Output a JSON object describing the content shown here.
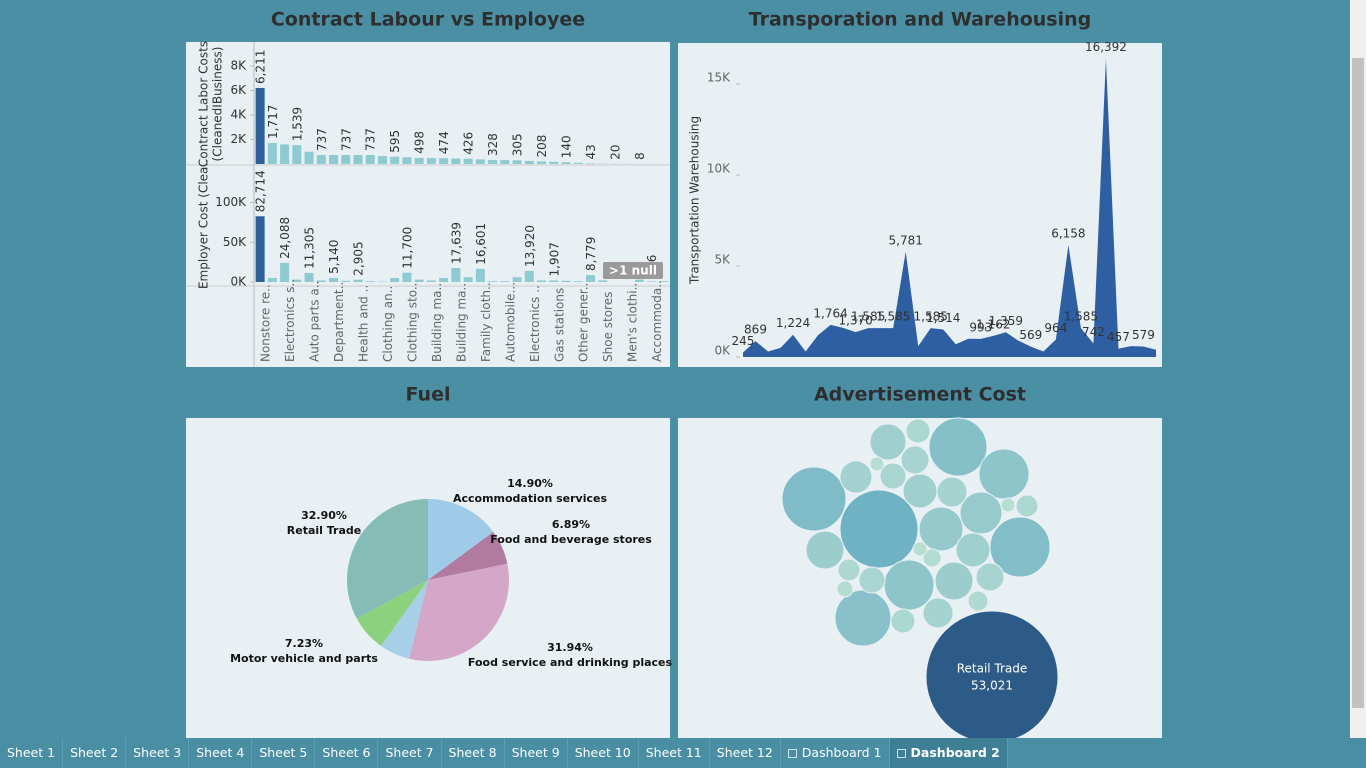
{
  "chart_data": [
    {
      "type": "bar",
      "title": "Contract Labour vs Employee",
      "categories": [
        "Nonstore re..",
        null,
        "Electronics s..",
        null,
        "Auto parts a..",
        null,
        "Department..",
        null,
        "Health and ..",
        null,
        "Clothing an..",
        null,
        "Clothing sto..",
        null,
        "Building ma..",
        null,
        "Building ma..",
        null,
        "Family cloth..",
        null,
        "Automobile...",
        null,
        "Electronics ..",
        null,
        "Gas stations",
        null,
        "Other gener..",
        null,
        "Shoe stores",
        null,
        "Men's clothi..",
        null,
        "Accommoda..",
        null
      ],
      "color": "#8ecad1",
      "max_color": "#2f5f98",
      "panes": [
        {
          "y_label": [
            "Contract Labor Costs",
            "(CleanedIBusiness)"
          ],
          "ylim": [
            0,
            9800
          ],
          "yticks": [
            {
              "value": 2000,
              "label": "2K"
            },
            {
              "value": 4000,
              "label": "4K"
            },
            {
              "value": 6000,
              "label": "6K"
            },
            {
              "value": 8000,
              "label": "8K"
            }
          ],
          "values": [
            6211,
            1717,
            1600,
            1539,
            1000,
            737,
            737,
            737,
            737,
            737,
            650,
            595,
            550,
            498,
            480,
            474,
            450,
            426,
            380,
            328,
            320,
            305,
            250,
            208,
            180,
            140,
            100,
            43,
            30,
            20,
            15,
            8,
            5,
            3
          ],
          "value_labels": [
            "6,211",
            "1,717",
            null,
            "1,539",
            null,
            "737",
            null,
            "737",
            null,
            "737",
            null,
            "595",
            null,
            "498",
            null,
            "474",
            null,
            "426",
            null,
            "328",
            null,
            "305",
            null,
            "208",
            null,
            "140",
            null,
            "43",
            null,
            "20",
            null,
            "8",
            null,
            null
          ]
        },
        {
          "y_label": [
            "Employer Cost (Clea.."
          ],
          "ylim": [
            0,
            146000
          ],
          "yticks": [
            {
              "value": 0,
              "label": "0K"
            },
            {
              "value": 50000,
              "label": "50K"
            },
            {
              "value": 100000,
              "label": "100K"
            }
          ],
          "values": [
            82714,
            5000,
            24088,
            3000,
            11305,
            2000,
            5140,
            1500,
            2905,
            1000,
            500,
            5000,
            11700,
            3000,
            2000,
            5000,
            17639,
            6000,
            16601,
            1000,
            1000,
            6000,
            13920,
            2000,
            1907,
            1500,
            1000,
            8779,
            2000,
            null,
            null,
            3000,
            686,
            1000
          ],
          "value_labels": [
            "82,714",
            null,
            "24,088",
            null,
            "11,305",
            null,
            "5,140",
            null,
            "2,905",
            null,
            null,
            null,
            "11,700",
            null,
            null,
            null,
            "17,639",
            null,
            "16,601",
            null,
            null,
            null,
            "13,920",
            null,
            "1,907",
            null,
            null,
            "8,779",
            null,
            null,
            null,
            null,
            "686",
            null
          ],
          "null_note": ">1 null"
        }
      ]
    },
    {
      "type": "area",
      "title": "Transporation and Warehousing",
      "y_label": "Transportation Warehousing",
      "categories": [
        null,
        null,
        null,
        null,
        null,
        null,
        null,
        null,
        null,
        null,
        null,
        null,
        null,
        null,
        null,
        null,
        null,
        null,
        null,
        null,
        null,
        null,
        null,
        null,
        null,
        null,
        null,
        null,
        null,
        null,
        null,
        null,
        null,
        null
      ],
      "values": [
        245,
        869,
        300,
        500,
        1224,
        300,
        1200,
        1764,
        1600,
        1370,
        1585,
        1585,
        1585,
        5781,
        600,
        1585,
        1514,
        700,
        1000,
        993,
        1162,
        1359,
        900,
        569,
        300,
        964,
        6158,
        1585,
        742,
        16392,
        457,
        600,
        579,
        400
      ],
      "value_labels": [
        "245",
        "869",
        null,
        null,
        "1,224",
        null,
        null,
        "1,764",
        null,
        "1,370",
        "1,585",
        null,
        "1,585",
        "5,781",
        null,
        "1,585",
        "1,514",
        null,
        null,
        "993",
        "1,162",
        "1,359",
        null,
        "569",
        null,
        "964",
        "6,158",
        "1,585",
        "742",
        "16,392",
        "457",
        null,
        "579",
        null
      ],
      "color": "#2e5fa3",
      "ylim": [
        0,
        17200
      ],
      "yticks": [
        {
          "value": 0,
          "label": "0K"
        },
        {
          "value": 5000,
          "label": "5K"
        },
        {
          "value": 10000,
          "label": "10K"
        },
        {
          "value": 15000,
          "label": "15K"
        }
      ]
    },
    {
      "type": "pie",
      "title": "Fuel",
      "categories": [
        "Accommodation services",
        "Food and beverage stores",
        "Food service and drinking places",
        null,
        "Motor vehicle and parts",
        "Retail Trade"
      ],
      "values": [
        14.9,
        6.89,
        31.94,
        6.14,
        7.23,
        32.9
      ],
      "value_labels": [
        "14.90%",
        "6.89%",
        "31.94%",
        null,
        "7.23%",
        "32.90%"
      ],
      "colors": [
        "#a0cbe8",
        "#b07aa1",
        "#d4a6c8",
        "#a8cfe8",
        "#8cd17d",
        "#86bcb6"
      ]
    },
    {
      "type": "bubble",
      "title": "Advertisement Cost",
      "categories": [
        "Retail Trade",
        null,
        null,
        null,
        null,
        null,
        null,
        null,
        null,
        null,
        null,
        null,
        null,
        null,
        null,
        null,
        null,
        null,
        null,
        null,
        null,
        null,
        null,
        null,
        null,
        null,
        null,
        null,
        null,
        null,
        null,
        null
      ],
      "values": [
        53021,
        18514,
        12464,
        10236,
        10958,
        9546,
        7610,
        7610,
        5891,
        5368,
        3944,
        3518,
        4394,
        4394,
        3518,
        3116,
        2739,
        2386,
        2057,
        2739,
        2057,
        2386,
        1473,
        1753,
        1753,
        1473,
        1217,
        986,
        596,
        596,
        779,
        596
      ],
      "value_labels": [
        "53,021",
        null,
        null,
        null,
        null,
        null,
        null,
        null,
        null,
        null,
        null,
        null,
        null,
        null,
        null,
        null,
        null,
        null,
        null,
        null,
        null,
        null,
        null,
        null,
        null,
        null,
        null,
        null,
        null,
        null,
        null,
        null
      ],
      "color_range": [
        "#c6e7d7",
        "#6fb2c3"
      ],
      "max_color": "#2d5b88"
    }
  ],
  "tabs": [
    {
      "label": "Sheet 1"
    },
    {
      "label": "Sheet 2"
    },
    {
      "label": "Sheet 3"
    },
    {
      "label": "Sheet 4"
    },
    {
      "label": "Sheet 5"
    },
    {
      "label": "Sheet 6"
    },
    {
      "label": "Sheet 7"
    },
    {
      "label": "Sheet 8"
    },
    {
      "label": "Sheet 9"
    },
    {
      "label": "Sheet 10"
    },
    {
      "label": "Sheet 11"
    },
    {
      "label": "Sheet 12"
    },
    {
      "label": "Dashboard 1",
      "dashboard": true
    },
    {
      "label": "Dashboard 2",
      "dashboard": true,
      "active": true
    }
  ]
}
